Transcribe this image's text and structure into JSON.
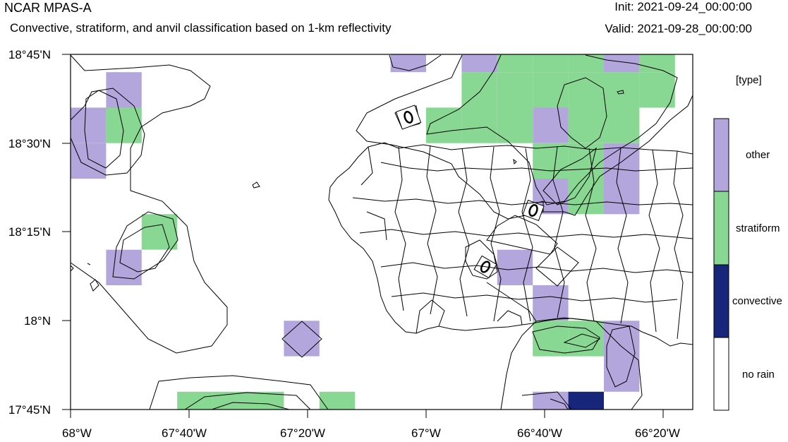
{
  "header": {
    "model_name": "NCAR MPAS-A",
    "description": "Convective, stratiform, and anvil classification based on 1-km reflectivity",
    "init_label": "Init: 2021-09-24_00:00:00",
    "valid_label": "Valid: 2021-09-28_00:00:00"
  },
  "axes": {
    "lat_ticks": [
      "18°45'N",
      "18°30'N",
      "18°15'N",
      "18°N",
      "17°45'N"
    ],
    "lon_ticks": [
      "68°W",
      "67°40'W",
      "67°20'W",
      "67°W",
      "66°40'W",
      "66°20'W"
    ]
  },
  "legend": {
    "title": "[type]",
    "entries": [
      {
        "label": "other",
        "color": "#b3a6dd"
      },
      {
        "label": "stratiform",
        "color": "#88d893"
      },
      {
        "label": "convective",
        "color": "#17257a"
      },
      {
        "label": "no rain",
        "color": "#ffffff"
      }
    ]
  },
  "chart_data": {
    "type": "heatmap",
    "lon_range": [
      -68.0,
      -66.25
    ],
    "lat_range": [
      17.75,
      18.75
    ],
    "grid_step_deg": 0.1,
    "categories": [
      "no rain",
      "convective",
      "stratiform",
      "other"
    ],
    "cells": [
      {
        "lon": -67.95,
        "lat": 18.45,
        "type": "other"
      },
      {
        "lon": -67.95,
        "lat": 18.55,
        "type": "other"
      },
      {
        "lon": -67.85,
        "lat": 18.55,
        "type": "stratiform"
      },
      {
        "lon": -67.85,
        "lat": 18.65,
        "type": "other"
      },
      {
        "lon": -67.75,
        "lat": 18.25,
        "type": "stratiform"
      },
      {
        "lon": -67.85,
        "lat": 18.15,
        "type": "other"
      },
      {
        "lon": -67.35,
        "lat": 17.95,
        "type": "other"
      },
      {
        "lon": -67.65,
        "lat": 17.75,
        "type": "stratiform"
      },
      {
        "lon": -67.55,
        "lat": 17.75,
        "type": "stratiform"
      },
      {
        "lon": -67.45,
        "lat": 17.75,
        "type": "stratiform"
      },
      {
        "lon": -67.25,
        "lat": 17.75,
        "type": "stratiform"
      },
      {
        "lon": -66.95,
        "lat": 18.55,
        "type": "stratiform"
      },
      {
        "lon": -66.85,
        "lat": 18.55,
        "type": "stratiform"
      },
      {
        "lon": -66.75,
        "lat": 18.55,
        "type": "stratiform"
      },
      {
        "lon": -66.55,
        "lat": 18.55,
        "type": "stratiform"
      },
      {
        "lon": -66.45,
        "lat": 18.55,
        "type": "stratiform"
      },
      {
        "lon": -66.85,
        "lat": 18.65,
        "type": "stratiform"
      },
      {
        "lon": -66.75,
        "lat": 18.65,
        "type": "stratiform"
      },
      {
        "lon": -66.65,
        "lat": 18.65,
        "type": "stratiform"
      },
      {
        "lon": -66.55,
        "lat": 18.65,
        "type": "stratiform"
      },
      {
        "lon": -66.45,
        "lat": 18.65,
        "type": "stratiform"
      },
      {
        "lon": -66.35,
        "lat": 18.65,
        "type": "stratiform"
      },
      {
        "lon": -66.35,
        "lat": 18.75,
        "type": "stratiform"
      },
      {
        "lon": -66.55,
        "lat": 18.75,
        "type": "stratiform"
      },
      {
        "lon": -66.65,
        "lat": 18.75,
        "type": "stratiform"
      },
      {
        "lon": -66.75,
        "lat": 18.75,
        "type": "stratiform"
      },
      {
        "lon": -67.05,
        "lat": 18.75,
        "type": "other"
      },
      {
        "lon": -66.85,
        "lat": 18.75,
        "type": "other"
      },
      {
        "lon": -66.45,
        "lat": 18.75,
        "type": "other"
      },
      {
        "lon": -66.65,
        "lat": 18.55,
        "type": "other"
      },
      {
        "lon": -66.65,
        "lat": 18.45,
        "type": "stratiform"
      },
      {
        "lon": -66.55,
        "lat": 18.45,
        "type": "stratiform"
      },
      {
        "lon": -66.45,
        "lat": 18.45,
        "type": "other"
      },
      {
        "lon": -66.65,
        "lat": 18.35,
        "type": "other"
      },
      {
        "lon": -66.55,
        "lat": 18.35,
        "type": "stratiform"
      },
      {
        "lon": -66.45,
        "lat": 18.35,
        "type": "other"
      },
      {
        "lon": -66.75,
        "lat": 18.15,
        "type": "other"
      },
      {
        "lon": -66.65,
        "lat": 18.05,
        "type": "other"
      },
      {
        "lon": -66.65,
        "lat": 17.95,
        "type": "stratiform"
      },
      {
        "lon": -66.55,
        "lat": 17.95,
        "type": "stratiform"
      },
      {
        "lon": -66.45,
        "lat": 17.95,
        "type": "other"
      },
      {
        "lon": -66.45,
        "lat": 17.85,
        "type": "other"
      },
      {
        "lon": -66.65,
        "lat": 17.75,
        "type": "other"
      },
      {
        "lon": -66.55,
        "lat": 17.75,
        "type": "convective"
      }
    ]
  }
}
